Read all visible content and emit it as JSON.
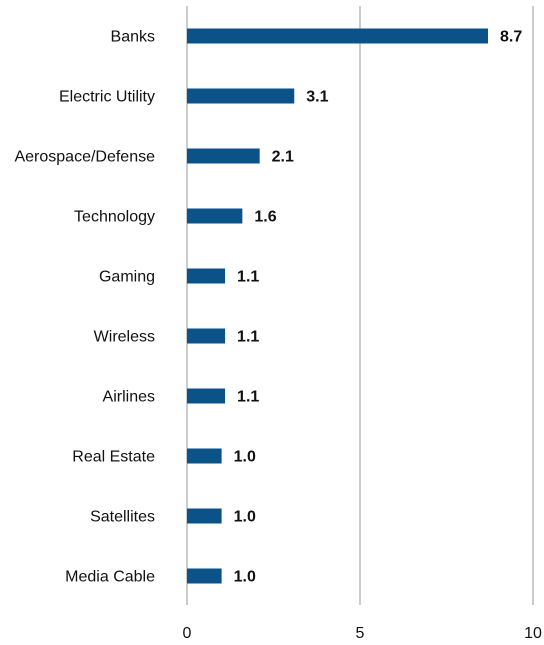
{
  "chart_data": {
    "type": "bar",
    "orientation": "horizontal",
    "categories": [
      "Banks",
      "Electric Utility",
      "Aerospace/Defense",
      "Technology",
      "Gaming",
      "Wireless",
      "Airlines",
      "Real Estate",
      "Satellites",
      "Media Cable"
    ],
    "values": [
      8.7,
      3.1,
      2.1,
      1.6,
      1.1,
      1.1,
      1.1,
      1.0,
      1.0,
      1.0
    ],
    "value_labels": [
      "8.7",
      "3.1",
      "2.1",
      "1.6",
      "1.1",
      "1.1",
      "1.1",
      "1.0",
      "1.0",
      "1.0"
    ],
    "xlim": [
      0,
      10
    ],
    "x_ticks": [
      0,
      5,
      10
    ],
    "x_tick_labels": [
      "0",
      "5",
      "10"
    ],
    "grid": "vertical",
    "legend": "none",
    "title": "",
    "xlabel": "",
    "ylabel": "",
    "colors": {
      "bar": "#0b5288",
      "grid": "#9a9a9a",
      "text": "#111111",
      "background": "#ffffff"
    }
  }
}
